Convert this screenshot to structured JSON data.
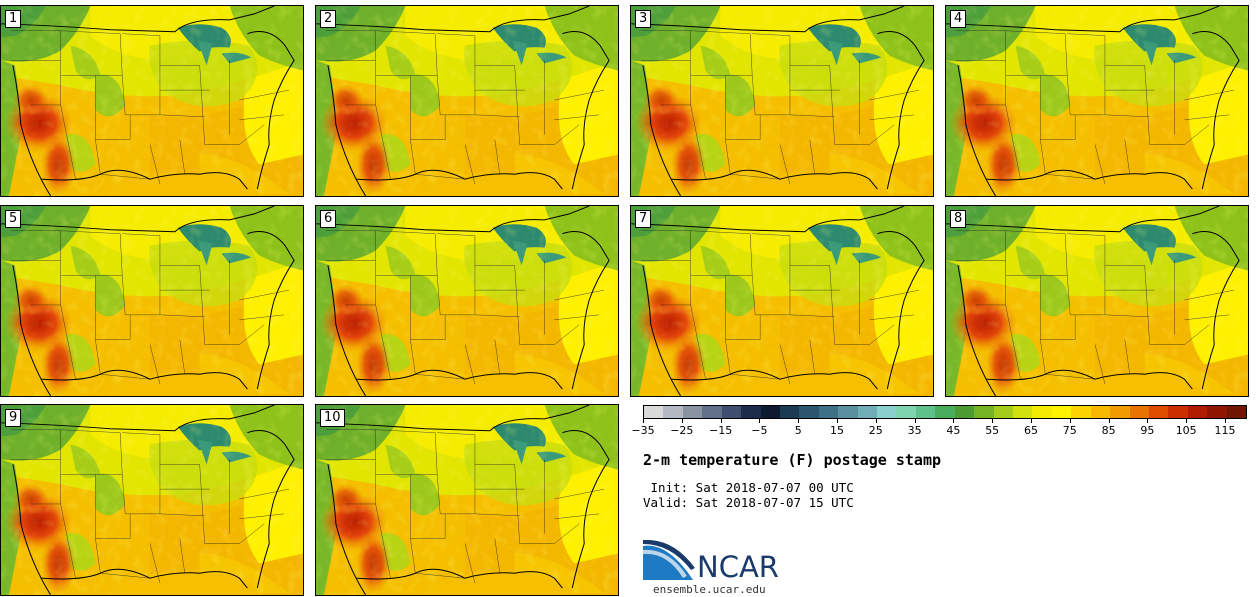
{
  "panels": [
    {
      "label": "1"
    },
    {
      "label": "2"
    },
    {
      "label": "3"
    },
    {
      "label": "4"
    },
    {
      "label": "5"
    },
    {
      "label": "6"
    },
    {
      "label": "7"
    },
    {
      "label": "8"
    },
    {
      "label": "9"
    },
    {
      "label": "10"
    }
  ],
  "colorbar": {
    "colors": [
      "#d9d9d9",
      "#b4b8c2",
      "#8a93a2",
      "#62708a",
      "#3d4e6e",
      "#1d2c4a",
      "#0d1a30",
      "#1b3a54",
      "#2c5670",
      "#3f7186",
      "#5a8fa0",
      "#6faeb6",
      "#89cfcb",
      "#7fd4b0",
      "#5ec08a",
      "#49ad5e",
      "#4b9a32",
      "#74b424",
      "#a4cc1a",
      "#cfe00c",
      "#f2ec00",
      "#fff300",
      "#fcd500",
      "#f6b800",
      "#f09a00",
      "#e97300",
      "#de4c00",
      "#cc2e00",
      "#b01c00",
      "#8f1500",
      "#6e1600"
    ],
    "tick_labels": [
      "−35",
      "−25",
      "−15",
      "−5",
      "5",
      "15",
      "25",
      "35",
      "45",
      "55",
      "65",
      "75",
      "85",
      "95",
      "105",
      "115"
    ]
  },
  "title": "2-m temperature (F) postage stamp",
  "init": " Init: Sat 2018-07-07 00 UTC",
  "valid": "Valid: Sat 2018-07-07 15 UTC",
  "logo": {
    "text": "NCAR",
    "url": "ensemble.ucar.edu"
  }
}
